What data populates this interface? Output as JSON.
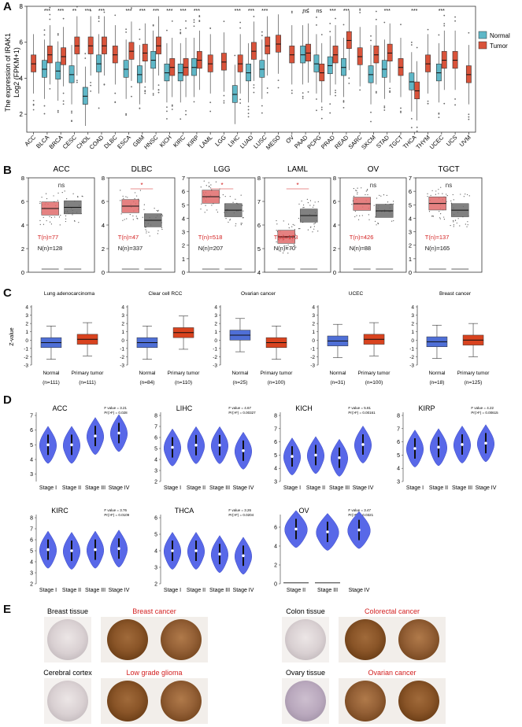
{
  "colors": {
    "normal": "#5fb7c7",
    "tumor": "#d9533a",
    "gepiaTumor": "#e06b6b",
    "gepiaNormal": "#6b6b6b",
    "ualBlue": "#4f6fd6",
    "ualRed": "#d9431f",
    "violin": "#5868e8",
    "red": "#d32020"
  },
  "panelA": {
    "letter": "A",
    "ylabel_line1": "The expression of IRAK1",
    "ylabel_line2": "Log2 (FPKM+1)",
    "legend": {
      "title": "",
      "normal": "Normal",
      "tumor": "Tumor"
    },
    "chart_data": {
      "type": "box",
      "categories": [
        "ACC",
        "BLCA",
        "BRCA",
        "CESC",
        "CHOL",
        "COAD",
        "DLBC",
        "ESCA",
        "GBM",
        "HNSC",
        "KICH",
        "KIRC",
        "KIRP",
        "LAML",
        "LGG",
        "LIHC",
        "LUAD",
        "LUSC",
        "MESO",
        "OV",
        "PAAD",
        "PCPG",
        "PRAD",
        "READ",
        "SARC",
        "SKCM",
        "STAD",
        "TGCT",
        "THCA",
        "THYM",
        "UCEC",
        "UCS",
        "UVM"
      ],
      "significance": [
        "",
        "***",
        "***",
        "**",
        "***",
        "***",
        "",
        "***",
        "***",
        "***",
        "***",
        "***",
        "***",
        "",
        "",
        "***",
        "***",
        "***",
        "",
        "",
        "ns",
        "ns",
        "***",
        "***",
        "",
        "",
        "***",
        "",
        "***",
        "",
        "***",
        "",
        ""
      ],
      "normal_median": [
        null,
        4.5,
        4.4,
        4.2,
        3.0,
        4.8,
        null,
        4.5,
        4.2,
        5.0,
        4.3,
        4.3,
        4.6,
        null,
        null,
        3.1,
        4.3,
        4.5,
        null,
        null,
        5.3,
        4.8,
        4.7,
        4.6,
        null,
        4.2,
        4.5,
        null,
        3.8,
        null,
        4.3,
        null,
        null
      ],
      "tumor_median": [
        4.8,
        5.3,
        5.2,
        5.8,
        5.8,
        5.8,
        5.3,
        5.5,
        5.4,
        5.8,
        4.6,
        4.6,
        5.0,
        4.8,
        4.9,
        4.8,
        5.5,
        5.8,
        5.9,
        5.3,
        5.4,
        4.3,
        5.3,
        6.1,
        5.2,
        5.3,
        5.4,
        4.6,
        3.3,
        4.8,
        5.0,
        5.0,
        4.2
      ],
      "ylim": [
        1,
        8
      ],
      "yticks": [
        2,
        4,
        6,
        8
      ]
    }
  },
  "panelB": {
    "letter": "B",
    "chart_data": {
      "type": "box",
      "panels": [
        {
          "title": "ACC",
          "sig": "ns",
          "T": "T(n)=77",
          "N": "N(n)=128",
          "ylim": [
            0,
            8
          ],
          "yticks": [
            "0",
            "2",
            "4",
            "6",
            "8"
          ],
          "tumor": 5.4,
          "normal": 5.5
        },
        {
          "title": "DLBC",
          "sig": "*",
          "T": "T(n)=47",
          "N": "N(n)=337",
          "ylim": [
            0,
            8
          ],
          "yticks": [
            "0",
            "2",
            "4",
            "6",
            "8"
          ],
          "tumor": 5.6,
          "normal": 4.4
        },
        {
          "title": "LGG",
          "sig": "*",
          "T": "T(n)=518",
          "N": "N(n)=207",
          "ylim": [
            0,
            7
          ],
          "yticks": [
            "0",
            "1",
            "2",
            "3",
            "4",
            "5",
            "6",
            "7"
          ],
          "tumor": 5.6,
          "normal": 4.6
        },
        {
          "title": "LAML",
          "sig": "*",
          "T": "T(n)=173",
          "N": "N(n)=70",
          "ylim": [
            4,
            8
          ],
          "yticks": [
            "4",
            "5",
            "6",
            "7",
            "8"
          ],
          "tumor": 5.5,
          "normal": 6.4
        },
        {
          "title": "OV",
          "sig": "ns",
          "T": "T(n)=426",
          "N": "N(n)=88",
          "ylim": [
            0,
            8
          ],
          "yticks": [
            "0",
            "2",
            "4",
            "6",
            "8"
          ],
          "tumor": 5.8,
          "normal": 5.2
        },
        {
          "title": "TGCT",
          "sig": "ns",
          "T": "T(n)=137",
          "N": "N(n)=165",
          "ylim": [
            0,
            7
          ],
          "yticks": [
            "0",
            "1",
            "2",
            "3",
            "4",
            "5",
            "6",
            "7"
          ],
          "tumor": 5.1,
          "normal": 4.6
        }
      ]
    }
  },
  "panelC": {
    "letter": "C",
    "ylabel": "Z-value",
    "chart_data": {
      "type": "box",
      "yticks": [
        "4",
        "3",
        "2",
        "1",
        "0",
        "-1",
        "-2",
        "-3"
      ],
      "ylim": [
        -3,
        4
      ],
      "panels": [
        {
          "title": "Lung adenocarcinoma",
          "groups": [
            "Normal",
            "Primary tumor"
          ],
          "n": [
            "(n=111)",
            "(n=111)"
          ],
          "medians": [
            -0.3,
            0.1
          ]
        },
        {
          "title": "Clear cell RCC",
          "groups": [
            "Normal",
            "Primary tumor"
          ],
          "n": [
            "(n=84)",
            "(n=110)"
          ],
          "medians": [
            -0.3,
            0.9
          ]
        },
        {
          "title": "Ovarian cancer",
          "groups": [
            "Normal",
            "Primary tumor"
          ],
          "n": [
            "(n=25)",
            "(n=100)"
          ],
          "medians": [
            0.6,
            -0.3
          ]
        },
        {
          "title": "UCEC",
          "groups": [
            "Normal",
            "Primary tumor"
          ],
          "n": [
            "(n=31)",
            "(n=100)"
          ],
          "medians": [
            -0.1,
            0.1
          ]
        },
        {
          "title": "Breast cancer",
          "groups": [
            "Normal",
            "Primary tumor"
          ],
          "n": [
            "(n=18)",
            "(n=125)"
          ],
          "medians": [
            -0.2,
            0.0
          ]
        }
      ]
    }
  },
  "panelD": {
    "letter": "D",
    "chart_data": {
      "type": "violin",
      "panels": [
        {
          "title": "ACC",
          "f": "F value = 3.21",
          "p": "Pr(>F) = 0.028",
          "stages": [
            "Stage I",
            "Stage II",
            "Stage III",
            "Stage IV"
          ],
          "medians": [
            5.0,
            5.0,
            5.6,
            5.8
          ],
          "ylim": [
            2.5,
            7
          ],
          "yticks": [
            "3",
            "4",
            "5",
            "6",
            "7"
          ]
        },
        {
          "title": "LIHC",
          "f": "F value = 4.67",
          "p": "Pr(>F) = 0.00327",
          "stages": [
            "Stage I",
            "Stage II",
            "Stage III",
            "Stage IV"
          ],
          "medians": [
            5.1,
            5.3,
            5.3,
            4.8
          ],
          "ylim": [
            2,
            8
          ],
          "yticks": [
            "2",
            "3",
            "4",
            "5",
            "6",
            "7",
            "8"
          ]
        },
        {
          "title": "KICH",
          "f": "F value = 5.81",
          "p": "Pr(>F) = 0.00161",
          "stages": [
            "Stage I",
            "Stage II",
            "Stage III",
            "Stage IV"
          ],
          "medians": [
            4.9,
            5.0,
            4.8,
            5.8
          ],
          "ylim": [
            3,
            8
          ],
          "yticks": [
            "3",
            "4",
            "5",
            "6",
            "7",
            "8"
          ]
        },
        {
          "title": "KIRP",
          "f": "F value = 4.22",
          "p": "Pr(>F) = 0.00615",
          "stages": [
            "Stage I",
            "Stage II",
            "Stage III",
            "Stage IV"
          ],
          "medians": [
            5.5,
            5.6,
            5.8,
            5.9
          ],
          "ylim": [
            3,
            8
          ],
          "yticks": [
            "3",
            "4",
            "5",
            "6",
            "7",
            "8"
          ]
        },
        {
          "title": "KIRC",
          "f": "F value = 3.76",
          "p": "Pr(>F) = 0.0109",
          "stages": [
            "Stage I",
            "Stage II",
            "Stage III",
            "Stage IV"
          ],
          "medians": [
            5.1,
            5.0,
            5.1,
            5.2
          ],
          "ylim": [
            2,
            8
          ],
          "yticks": [
            "2",
            "3",
            "4",
            "5",
            "6",
            "7",
            "8"
          ]
        },
        {
          "title": "THCA",
          "f": "F value = 3.26",
          "p": "Pr(>F) = 0.0204",
          "stages": [
            "Stage I",
            "Stage II",
            "Stage III",
            "Stage IV"
          ],
          "medians": [
            4.0,
            4.0,
            3.8,
            3.7
          ],
          "ylim": [
            2,
            6
          ],
          "yticks": [
            "2",
            "3",
            "4",
            "5",
            "6"
          ]
        },
        {
          "title": "OV",
          "f": "F value = 3.47",
          "p": "Pr(>F) = 0.0321",
          "stages": [
            "Stage II",
            "Stage III",
            "Stage IV"
          ],
          "medians": [
            5.8,
            5.5,
            5.7
          ],
          "ylim": [
            0,
            7
          ],
          "yticks": [
            "0",
            "2",
            "4",
            "6"
          ]
        }
      ]
    }
  },
  "panelE": {
    "letter": "E",
    "items": [
      {
        "normal": "Breast tissue",
        "cancer": "Breast cancer"
      },
      {
        "normal": "Colon tissue",
        "cancer": "Colorectal cancer"
      },
      {
        "normal": "Cerebral cortex",
        "cancer": "Low grade glioma"
      },
      {
        "normal": "Ovary tissue",
        "cancer": "Ovarian cancer"
      }
    ]
  }
}
